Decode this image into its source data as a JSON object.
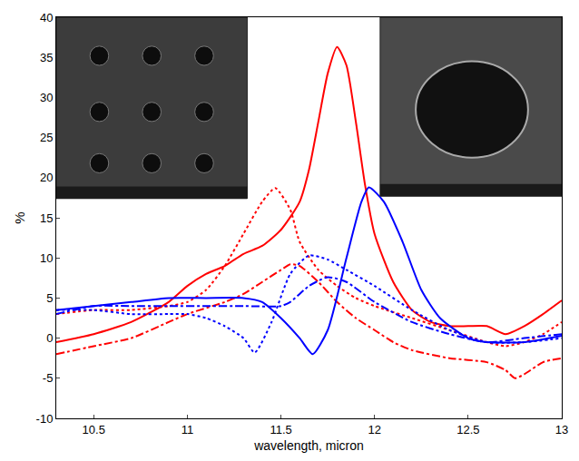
{
  "chart_data": {
    "type": "line",
    "x_label": "wavelength, micron",
    "y_label": "%",
    "xlim": [
      10.3,
      13
    ],
    "ylim": [
      -10,
      40
    ],
    "xticks": [
      10.5,
      11,
      11.5,
      12,
      12.5,
      13
    ],
    "yticks": [
      -10,
      -5,
      0,
      5,
      10,
      15,
      20,
      25,
      30,
      35,
      40
    ],
    "grid": false,
    "series": [
      {
        "color": "#ff0000",
        "line_style": "solid",
        "x": [
          10.3,
          10.5,
          10.7,
          10.9,
          11.0,
          11.1,
          11.2,
          11.3,
          11.4,
          11.5,
          11.6,
          11.65,
          11.7,
          11.75,
          11.8,
          11.85,
          11.9,
          11.95,
          12.0,
          12.1,
          12.2,
          12.3,
          12.4,
          12.5,
          12.6,
          12.7,
          12.8,
          12.9,
          13.0
        ],
        "values": [
          -0.5,
          0.5,
          2,
          4.5,
          6.5,
          8,
          9,
          10.5,
          11.5,
          13.5,
          17,
          21,
          27,
          33,
          36.3,
          34,
          27,
          19,
          13,
          7,
          3.5,
          2,
          1.5,
          1.5,
          1.5,
          0.5,
          1.5,
          3,
          4.7
        ]
      },
      {
        "color": "#ff0000",
        "line_style": "dotted",
        "x": [
          10.3,
          10.5,
          10.7,
          10.9,
          11.0,
          11.1,
          11.2,
          11.3,
          11.4,
          11.47,
          11.55,
          11.6,
          11.7,
          11.8,
          11.9,
          12.0,
          12.2,
          12.4,
          12.6,
          12.7,
          12.8,
          12.9,
          13.0
        ],
        "values": [
          3,
          3.5,
          3.5,
          4,
          4.5,
          6,
          9,
          13,
          17,
          18.7,
          16,
          12,
          8.5,
          6.5,
          5,
          4,
          2.5,
          1,
          -0.5,
          -1,
          -0.5,
          0.5,
          2
        ]
      },
      {
        "color": "#ff0000",
        "line_style": "dashdot",
        "x": [
          10.3,
          10.5,
          10.7,
          10.9,
          11.0,
          11.2,
          11.3,
          11.4,
          11.5,
          11.55,
          11.6,
          11.7,
          11.8,
          11.9,
          12.0,
          12.1,
          12.2,
          12.4,
          12.6,
          12.7,
          12.75,
          12.8,
          12.9,
          13.0
        ],
        "values": [
          -2,
          -1,
          0,
          2,
          3,
          4.5,
          5.5,
          7,
          8.5,
          9.2,
          9,
          7,
          4.5,
          2.5,
          1,
          -0.5,
          -1.5,
          -2.5,
          -3,
          -4,
          -5,
          -4.5,
          -3,
          -2.5
        ]
      },
      {
        "color": "#0000ff",
        "line_style": "solid",
        "x": [
          10.3,
          10.5,
          10.7,
          10.9,
          11.1,
          11.3,
          11.4,
          11.5,
          11.6,
          11.67,
          11.75,
          11.85,
          11.93,
          11.97,
          12.05,
          12.15,
          12.25,
          12.35,
          12.5,
          12.6,
          12.8,
          13.0
        ],
        "values": [
          3.5,
          4,
          4.5,
          5,
          5,
          5,
          4.5,
          2.5,
          0,
          -2,
          1,
          10,
          17,
          18.8,
          17,
          12,
          6,
          2.5,
          0,
          -0.5,
          -0.5,
          0.3
        ]
      },
      {
        "color": "#0000ff",
        "line_style": "dotted",
        "x": [
          10.3,
          10.5,
          10.7,
          10.9,
          11.0,
          11.1,
          11.2,
          11.3,
          11.36,
          11.45,
          11.55,
          11.65,
          11.75,
          11.85,
          12.0,
          12.2,
          12.4,
          12.6,
          12.8,
          13.0
        ],
        "values": [
          3.5,
          3.5,
          3,
          3,
          3,
          2.5,
          1.5,
          0,
          -1.8,
          2,
          8,
          10.3,
          9.8,
          8.5,
          6.5,
          3.5,
          1,
          -0.5,
          -0.5,
          0
        ]
      },
      {
        "color": "#0000ff",
        "line_style": "dashdot",
        "x": [
          10.3,
          10.5,
          10.7,
          10.9,
          11.1,
          11.3,
          11.5,
          11.55,
          11.65,
          11.75,
          11.85,
          12.0,
          12.2,
          12.4,
          12.6,
          12.8,
          13.0
        ],
        "values": [
          3,
          4,
          4,
          4,
          4,
          4,
          4,
          4.5,
          6.5,
          7.6,
          7,
          4.5,
          2,
          0.5,
          -0.5,
          0,
          0.5
        ]
      }
    ]
  }
}
